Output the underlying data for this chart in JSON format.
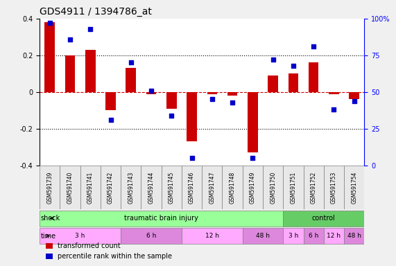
{
  "title": "GDS4911 / 1394786_at",
  "samples": [
    "GSM591739",
    "GSM591740",
    "GSM591741",
    "GSM591742",
    "GSM591743",
    "GSM591744",
    "GSM591745",
    "GSM591746",
    "GSM591747",
    "GSM591748",
    "GSM591749",
    "GSM591750",
    "GSM591751",
    "GSM591752",
    "GSM591753",
    "GSM591754"
  ],
  "transformed_count": [
    0.38,
    0.2,
    0.23,
    -0.1,
    0.13,
    -0.01,
    -0.09,
    -0.27,
    -0.01,
    -0.02,
    -0.33,
    0.09,
    0.1,
    0.16,
    -0.01,
    -0.04
  ],
  "percentile_rank": [
    97,
    86,
    93,
    31,
    70,
    51,
    34,
    5,
    45,
    43,
    5,
    72,
    68,
    81,
    38,
    44
  ],
  "ylim_left": [
    -0.4,
    0.4
  ],
  "ylim_right": [
    0,
    100
  ],
  "bar_color": "#cc0000",
  "scatter_color": "#0000cc",
  "grid_color": "black",
  "dashed_zero_color": "#cc0000",
  "shock_label": "shock",
  "time_label": "time",
  "shock_groups": [
    {
      "label": "traumatic brain injury",
      "start": 0,
      "end": 12,
      "color": "#99ff99"
    },
    {
      "label": "control",
      "start": 12,
      "end": 16,
      "color": "#66cc66"
    }
  ],
  "time_groups": [
    {
      "label": "3 h",
      "start": 0,
      "end": 4,
      "color": "#ffaaff"
    },
    {
      "label": "6 h",
      "start": 4,
      "end": 7,
      "color": "#dd88dd"
    },
    {
      "label": "12 h",
      "start": 7,
      "end": 10,
      "color": "#ffaaff"
    },
    {
      "label": "48 h",
      "start": 10,
      "end": 12,
      "color": "#dd88dd"
    },
    {
      "label": "3 h",
      "start": 12,
      "end": 13,
      "color": "#ffaaff"
    },
    {
      "label": "6 h",
      "start": 13,
      "end": 14,
      "color": "#dd88dd"
    },
    {
      "label": "12 h",
      "start": 14,
      "end": 15,
      "color": "#ffaaff"
    },
    {
      "label": "48 h",
      "start": 15,
      "end": 16,
      "color": "#dd88dd"
    }
  ],
  "legend_items": [
    {
      "label": "transformed count",
      "color": "#cc0000",
      "marker": "s"
    },
    {
      "label": "percentile rank within the sample",
      "color": "#0000cc",
      "marker": "s"
    }
  ],
  "background_color": "#f0f0f0",
  "plot_bg": "#ffffff"
}
